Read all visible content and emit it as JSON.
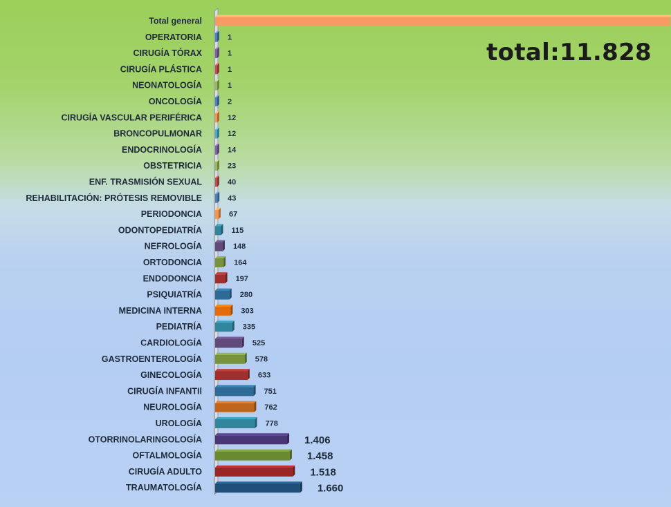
{
  "total_text": "total:11.828",
  "chart_data": {
    "type": "bar",
    "orientation": "horizontal",
    "categories": [
      "Total general",
      "OPERATORIA",
      "CIRUGÍA TÓRAX",
      "CIRUGÍA PLÁSTICA",
      "NEONATOLOGÍA",
      "ONCOLOGÍA",
      "CIRUGÍA VASCULAR PERIFÉRICA",
      "BRONCOPULMONAR",
      "ENDOCRINOLOGÍA",
      "OBSTETRICIA",
      "ENF. TRASMISIÓN SEXUAL",
      "REHABILITACIÓN: PRÓTESIS REMOVIBLE",
      "PERIODONCIA",
      "ODONTOPEDIATRÍA",
      "NEFROLOGÍA",
      "ORTODONCIA",
      "ENDODONCIA",
      "PSIQUIATRÍA",
      "MEDICINA INTERNA",
      "PEDIATRÍA",
      "CARDIOLOGÍA",
      "GASTROENTEROLOGÍA",
      "GINECOLOGÍA",
      "CIRUGÍA INFANTIl",
      "NEUROLOGÍA",
      "UROLOGÍA",
      "OTORRINOLARINGOLOGÍA",
      "OFTALMOLOGÍA",
      "CIRUGÍA ADULTO",
      "TRAUMATOLOGÍA"
    ],
    "values": [
      11828,
      1,
      1,
      1,
      1,
      2,
      12,
      12,
      14,
      23,
      40,
      43,
      67,
      115,
      148,
      164,
      197,
      280,
      303,
      335,
      525,
      578,
      633,
      751,
      762,
      778,
      1406,
      1458,
      1518,
      1660
    ],
    "value_labels": [
      "",
      "1",
      "1",
      "1",
      "1",
      "2",
      "12",
      "12",
      "14",
      "23",
      "40",
      "43",
      "67",
      "115",
      "148",
      "164",
      "197",
      "280",
      "303",
      "335",
      "525",
      "578",
      "633",
      "751",
      "762",
      "778",
      "1.406",
      "1.458",
      "1.518",
      "1.660"
    ],
    "colors": [
      "#f79a63",
      "#4f81bd",
      "#8064a2",
      "#c0504d",
      "#9bbb59",
      "#4f81bd",
      "#f79646",
      "#4bacc6",
      "#8064a2",
      "#9bbb59",
      "#c0504d",
      "#4f81bd",
      "#f79646",
      "#31859c",
      "#604a7b",
      "#77933c",
      "#a0302d",
      "#2e6a96",
      "#e36c0a",
      "#31859c",
      "#604a7b",
      "#77933c",
      "#a0302d",
      "#2e6a96",
      "#c0651d",
      "#31859c",
      "#4a3575",
      "#6a8a2f",
      "#9a2626",
      "#1f4e79"
    ],
    "title": "",
    "xlabel": "",
    "ylabel": "",
    "grid": false,
    "legend": "none"
  }
}
